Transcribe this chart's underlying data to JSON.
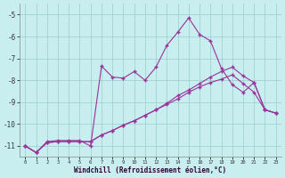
{
  "xlabel": "Windchill (Refroidissement éolien,°C)",
  "background_color": "#c8eef0",
  "grid_color": "#99cccc",
  "line_color": "#993399",
  "ylim": [
    -11.5,
    -4.5
  ],
  "xlim": [
    -0.5,
    23.5
  ],
  "yticks": [
    -11,
    -10,
    -9,
    -8,
    -7,
    -6,
    -5
  ],
  "xticks": [
    0,
    1,
    2,
    3,
    4,
    5,
    6,
    7,
    8,
    9,
    10,
    11,
    12,
    13,
    14,
    15,
    16,
    17,
    18,
    19,
    20,
    21,
    22,
    23
  ],
  "line1_x": [
    0,
    1,
    2,
    3,
    4,
    5,
    6,
    7,
    8,
    9,
    10,
    11,
    12,
    13,
    14,
    15,
    16,
    17,
    18,
    19,
    20,
    21,
    22,
    23
  ],
  "line1_y": [
    -11.0,
    -11.3,
    -10.8,
    -10.75,
    -10.75,
    -10.75,
    -11.0,
    -7.35,
    -7.85,
    -7.9,
    -7.6,
    -8.0,
    -7.4,
    -6.4,
    -5.8,
    -5.15,
    -5.9,
    -6.2,
    -7.45,
    -8.2,
    -8.55,
    -8.1,
    -9.35,
    -9.5
  ],
  "line2_x": [
    0,
    1,
    2,
    3,
    4,
    5,
    6,
    7,
    8,
    9,
    10,
    11,
    12,
    13,
    14,
    15,
    16,
    17,
    18,
    19,
    20,
    21,
    22,
    23
  ],
  "line2_y": [
    -11.0,
    -11.3,
    -10.85,
    -10.8,
    -10.8,
    -10.8,
    -10.8,
    -10.5,
    -10.3,
    -10.05,
    -9.85,
    -9.6,
    -9.35,
    -9.1,
    -8.85,
    -8.55,
    -8.3,
    -8.1,
    -7.95,
    -7.75,
    -8.15,
    -8.55,
    -9.35,
    -9.5
  ],
  "line3_x": [
    0,
    1,
    2,
    3,
    4,
    5,
    6,
    7,
    8,
    9,
    10,
    11,
    12,
    13,
    14,
    15,
    16,
    17,
    18,
    19,
    20,
    21,
    22,
    23
  ],
  "line3_y": [
    -11.0,
    -11.3,
    -10.85,
    -10.8,
    -10.8,
    -10.8,
    -10.8,
    -10.5,
    -10.3,
    -10.05,
    -9.85,
    -9.6,
    -9.35,
    -9.05,
    -8.7,
    -8.45,
    -8.15,
    -7.85,
    -7.6,
    -7.4,
    -7.8,
    -8.1,
    -9.35,
    -9.5
  ]
}
